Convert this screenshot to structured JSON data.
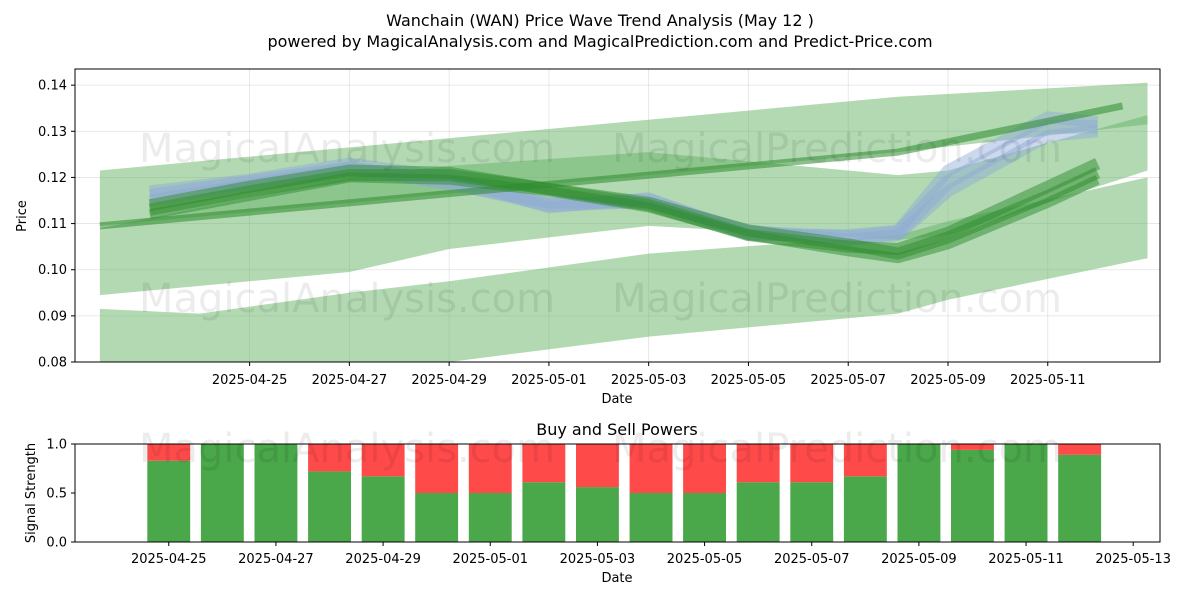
{
  "title": "Wanchain (WAN) Price Wave Trend Analysis (May 12 )",
  "subtitle": "powered by MagicalAnalysis.com and MagicalPrediction.com and Predict-Price.com",
  "watermarks": [
    "MagicalAnalysis.com",
    "MagicalPrediction.com"
  ],
  "colors": {
    "buy": "#4aa74a",
    "sell": "#ff4a4a",
    "band": "#66b366",
    "wave_green": "#2e8b2e",
    "wave_blue": "#8fa8d8"
  },
  "chart_data": [
    {
      "type": "line",
      "title": "",
      "xlabel": "Date",
      "ylabel": "Price",
      "x_range": [
        "2025-04-21T12:00",
        "2025-05-13T06:00"
      ],
      "ylim": [
        0.08,
        0.1435
      ],
      "yticks": [
        "0.08",
        "0.09",
        "0.10",
        "0.11",
        "0.12",
        "0.13",
        "0.14"
      ],
      "xticks": [
        "2025-04-25",
        "2025-04-27",
        "2025-04-29",
        "2025-05-01",
        "2025-05-03",
        "2025-05-05",
        "2025-05-07",
        "2025-05-09",
        "2025-05-11"
      ],
      "grid": true,
      "bands": [
        {
          "x": [
            "2025-04-22",
            "2025-05-08",
            "2025-05-13"
          ],
          "upper": [
            0.1215,
            0.1375,
            0.1405
          ],
          "lower": [
            0.1095,
            0.1255,
            0.1315
          ]
        },
        {
          "x": [
            "2025-04-22",
            "2025-04-27",
            "2025-04-29",
            "2025-05-03",
            "2025-05-08",
            "2025-05-09",
            "2025-05-13"
          ],
          "upper": [
            0.109,
            0.12,
            0.1225,
            0.1255,
            0.1205,
            0.1215,
            0.1335
          ],
          "lower": [
            0.0945,
            0.0995,
            0.1045,
            0.1095,
            0.1065,
            0.1075,
            0.1215
          ]
        },
        {
          "x": [
            "2025-04-22",
            "2025-04-24",
            "2025-04-27",
            "2025-04-29",
            "2025-05-03",
            "2025-05-08",
            "2025-05-09",
            "2025-05-13"
          ],
          "upper": [
            0.0915,
            0.0905,
            0.095,
            0.0975,
            0.1035,
            0.1075,
            0.1105,
            0.12
          ],
          "lower": [
            0.079,
            0.076,
            0.077,
            0.08,
            0.0855,
            0.0905,
            0.0935,
            0.1025
          ]
        }
      ],
      "series": [
        {
          "x": [
            "2025-04-23",
            "2025-04-25",
            "2025-04-27",
            "2025-04-29",
            "2025-05-01",
            "2025-05-03",
            "2025-05-05",
            "2025-05-07",
            "2025-05-08",
            "2025-05-09",
            "2025-05-11",
            "2025-05-12"
          ],
          "values": [
            0.116,
            0.119,
            0.122,
            0.119,
            0.114,
            0.115,
            0.108,
            0.107,
            0.108,
            0.119,
            0.131,
            0.131
          ]
        },
        {
          "x": [
            "2025-04-23",
            "2025-04-25",
            "2025-04-27",
            "2025-04-29",
            "2025-05-01",
            "2025-05-03",
            "2025-05-05",
            "2025-05-07",
            "2025-05-08",
            "2025-05-09",
            "2025-05-11",
            "2025-05-12"
          ],
          "values": [
            0.117,
            0.1195,
            0.123,
            0.12,
            0.1135,
            0.1155,
            0.1075,
            0.1075,
            0.1085,
            0.1215,
            0.133,
            0.132
          ]
        },
        {
          "x": [
            "2025-04-23",
            "2025-04-25",
            "2025-04-27",
            "2025-04-29",
            "2025-05-01",
            "2025-05-03",
            "2025-05-05",
            "2025-05-07",
            "2025-05-08",
            "2025-05-09",
            "2025-05-11",
            "2025-05-12"
          ],
          "values": [
            0.115,
            0.1185,
            0.122,
            0.1185,
            0.1145,
            0.1145,
            0.1085,
            0.1065,
            0.1075,
            0.117,
            0.129,
            0.13
          ]
        },
        {
          "x": [
            "2025-04-23",
            "2025-04-25",
            "2025-04-27",
            "2025-04-29",
            "2025-05-01",
            "2025-05-03",
            "2025-05-05",
            "2025-05-07",
            "2025-05-08",
            "2025-05-09",
            "2025-05-11",
            "2025-05-12"
          ],
          "values": [
            0.114,
            0.118,
            0.1215,
            0.121,
            0.1175,
            0.114,
            0.1075,
            0.105,
            0.1045,
            0.108,
            0.118,
            0.123
          ]
        },
        {
          "x": [
            "2025-04-23",
            "2025-04-25",
            "2025-04-27",
            "2025-04-29",
            "2025-05-01",
            "2025-05-03",
            "2025-05-05",
            "2025-05-07",
            "2025-05-08",
            "2025-05-09",
            "2025-05-11",
            "2025-05-12"
          ],
          "values": [
            0.113,
            0.117,
            0.1205,
            0.1205,
            0.1175,
            0.1145,
            0.1085,
            0.1055,
            0.1035,
            0.107,
            0.116,
            0.121
          ]
        },
        {
          "x": [
            "2025-04-23",
            "2025-04-25",
            "2025-04-27",
            "2025-04-29",
            "2025-05-01",
            "2025-05-03",
            "2025-05-05",
            "2025-05-07",
            "2025-05-08",
            "2025-05-09",
            "2025-05-11",
            "2025-05-12"
          ],
          "values": [
            0.112,
            0.116,
            0.12,
            0.1195,
            0.117,
            0.1135,
            0.1075,
            0.104,
            0.1025,
            0.1055,
            0.1145,
            0.1195
          ]
        },
        {
          "x": [
            "2025-04-22",
            "2025-05-08",
            "2025-05-12T12:00"
          ],
          "values": [
            0.1095,
            0.1255,
            0.1355
          ]
        }
      ]
    },
    {
      "type": "bar",
      "title": "Buy and Sell Powers",
      "xlabel": "Date",
      "ylabel": "Signal Strength",
      "ylim": [
        0,
        1.0
      ],
      "yticks": [
        "0.0",
        "0.5",
        "1.0"
      ],
      "x_range": [
        "2025-04-23T06:00",
        "2025-05-13T12:00"
      ],
      "xticks": [
        "2025-04-25",
        "2025-04-27",
        "2025-04-29",
        "2025-05-01",
        "2025-05-03",
        "2025-05-05",
        "2025-05-07",
        "2025-05-09",
        "2025-05-11",
        "2025-05-13"
      ],
      "categories": [
        "2025-04-25",
        "2025-04-26",
        "2025-04-27",
        "2025-04-28",
        "2025-04-29",
        "2025-04-30",
        "2025-05-01",
        "2025-05-02",
        "2025-05-03",
        "2025-05-04",
        "2025-05-05",
        "2025-05-06",
        "2025-05-07",
        "2025-05-08",
        "2025-05-09",
        "2025-05-10",
        "2025-05-11",
        "2025-05-12"
      ],
      "series": [
        {
          "values": [
            0.83,
            1.0,
            1.0,
            0.72,
            0.67,
            0.5,
            0.5,
            0.61,
            0.56,
            0.5,
            0.5,
            0.61,
            0.61,
            0.67,
            1.0,
            0.94,
            1.0,
            0.89
          ]
        },
        {
          "values": [
            0.17,
            0.0,
            0.0,
            0.28,
            0.33,
            0.5,
            0.5,
            0.39,
            0.44,
            0.5,
            0.5,
            0.39,
            0.39,
            0.33,
            0.0,
            0.06,
            0.0,
            0.11
          ]
        }
      ]
    }
  ]
}
